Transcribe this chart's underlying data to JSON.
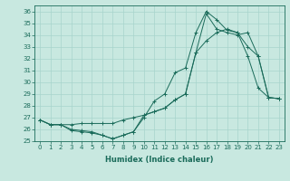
{
  "xlabel": "Humidex (Indice chaleur)",
  "xlim": [
    -0.5,
    23.5
  ],
  "ylim": [
    25,
    36.5
  ],
  "yticks": [
    25,
    26,
    27,
    28,
    29,
    30,
    31,
    32,
    33,
    34,
    35,
    36
  ],
  "xticks": [
    0,
    1,
    2,
    3,
    4,
    5,
    6,
    7,
    8,
    9,
    10,
    11,
    12,
    13,
    14,
    15,
    16,
    17,
    18,
    19,
    20,
    21,
    22,
    23
  ],
  "bg_color": "#c8e8e0",
  "line_color": "#1a6b5a",
  "line1_y": [
    26.8,
    26.4,
    26.4,
    25.9,
    25.8,
    25.7,
    25.5,
    25.2,
    25.5,
    25.8,
    27.0,
    28.4,
    29.0,
    30.8,
    31.2,
    34.2,
    36.0,
    35.3,
    34.4,
    34.2,
    32.2,
    29.5,
    28.7,
    28.6
  ],
  "line2_y": [
    26.8,
    26.4,
    26.4,
    26.4,
    26.5,
    26.5,
    26.5,
    26.5,
    26.8,
    27.0,
    27.2,
    27.5,
    27.8,
    28.5,
    29.0,
    32.5,
    33.5,
    34.2,
    34.5,
    34.2,
    33.0,
    32.2,
    28.7,
    28.6
  ],
  "line3_y": [
    26.8,
    26.4,
    26.4,
    26.0,
    25.9,
    25.8,
    25.5,
    25.2,
    25.5,
    25.8,
    27.2,
    27.5,
    27.8,
    28.5,
    29.0,
    32.5,
    35.8,
    34.5,
    34.2,
    34.0,
    34.2,
    32.2,
    28.7,
    28.6
  ],
  "title_fontsize": 7,
  "label_fontsize": 6,
  "tick_fontsize": 5
}
